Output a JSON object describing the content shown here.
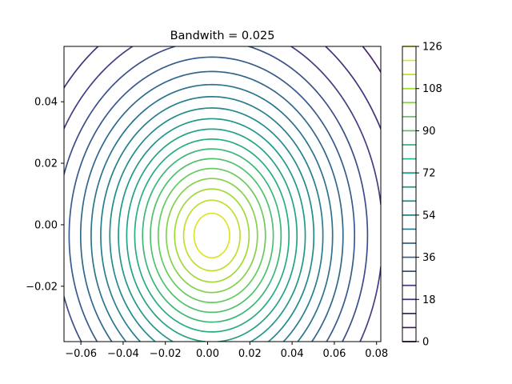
{
  "chart_data": {
    "type": "contour",
    "title": "Bandwith = 0.025",
    "xlabel": "",
    "ylabel": "",
    "xlim": [
      -0.068,
      0.082
    ],
    "ylim": [
      -0.038,
      0.058
    ],
    "x_ticks": [
      "−0.06",
      "−0.04",
      "−0.02",
      "0.00",
      "0.02",
      "0.04",
      "0.06",
      "0.08"
    ],
    "x_tick_values": [
      -0.06,
      -0.04,
      -0.02,
      0.0,
      0.02,
      0.04,
      0.06,
      0.08
    ],
    "y_ticks": [
      "−0.02",
      "0.00",
      "0.02",
      "0.04"
    ],
    "y_tick_values": [
      -0.02,
      0.0,
      0.02,
      0.04
    ],
    "peak": {
      "x": 0.002,
      "y": -0.0035,
      "value": 126
    },
    "contour_levels": [
      0,
      6,
      12,
      18,
      24,
      30,
      36,
      42,
      48,
      54,
      60,
      66,
      72,
      78,
      84,
      90,
      96,
      102,
      108,
      114,
      120,
      126
    ],
    "colorbar": {
      "min": 0,
      "max": 126,
      "ticks": [
        "0",
        "18",
        "36",
        "54",
        "72",
        "90",
        "108",
        "126"
      ],
      "tick_values": [
        0,
        18,
        36,
        54,
        72,
        90,
        108,
        126
      ],
      "colormap": "viridis"
    },
    "grid": false,
    "legend": "none"
  }
}
